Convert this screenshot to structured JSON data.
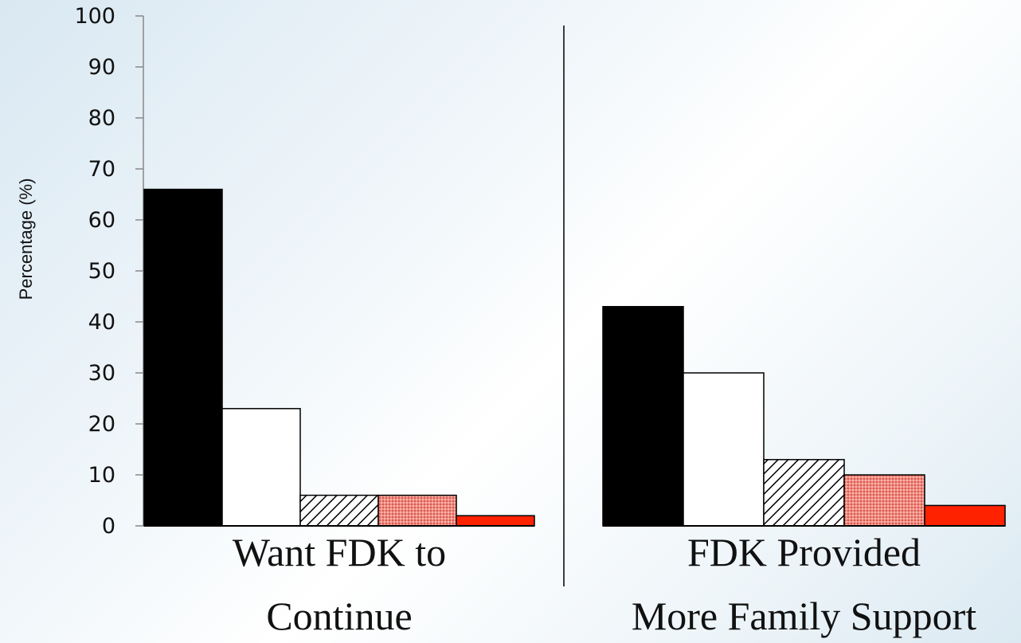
{
  "chart_data": {
    "type": "bar",
    "ylabel": "Percentage (%)",
    "ylim": [
      0,
      100
    ],
    "yticks": [
      0,
      10,
      20,
      30,
      40,
      50,
      60,
      70,
      80,
      90,
      100
    ],
    "grid": false,
    "legend": "none",
    "groups": [
      {
        "label_lines": [
          "Want FDK to",
          "Continue"
        ],
        "values": [
          66,
          23,
          6,
          6,
          2
        ]
      },
      {
        "label_lines": [
          "FDK Provided",
          "More Family Support"
        ],
        "values": [
          43,
          30,
          13,
          10,
          4
        ]
      }
    ],
    "bar_styles": [
      "solid-black",
      "white",
      "diagonal-hatch",
      "red-dotted",
      "solid-red"
    ],
    "colors": {
      "black": "#000000",
      "white": "#ffffff",
      "pink": "#f28c82",
      "red": "#ff2200"
    }
  }
}
